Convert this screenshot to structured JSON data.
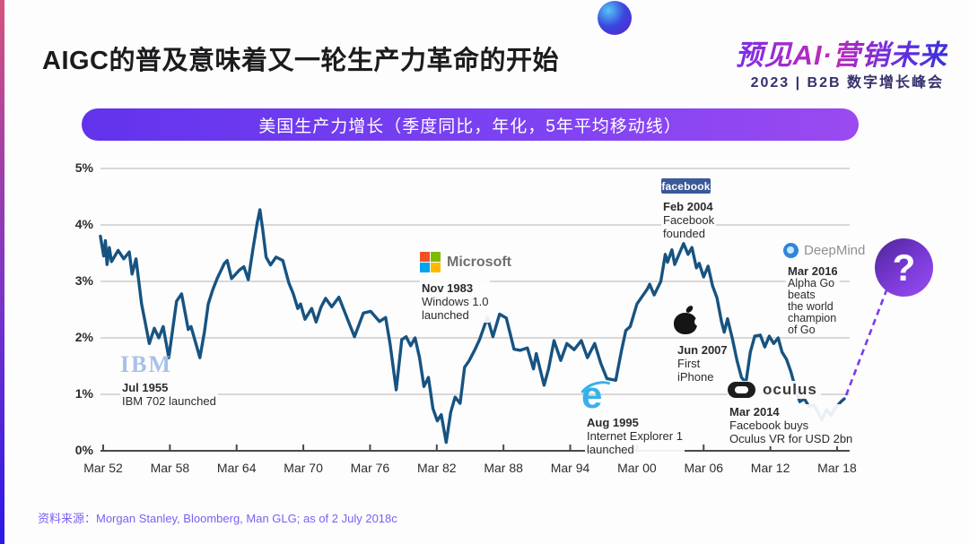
{
  "slide": {
    "title": "AIGC的普及意味着又一轮生产力革命的开始",
    "source_note": "资料来源：Morgan Stanley, Bloomberg, Man GLG; as of 2 July 2018c"
  },
  "brand": {
    "line1": "预见AI·营销未来",
    "line2": "2023 | B2B 数字增长峰会"
  },
  "chart_data": {
    "type": "line",
    "title": "美国生产力增长（季度同比，年化，5年平均移动线）",
    "ylabel": "",
    "xlabel": "",
    "ylim": [
      0,
      5
    ],
    "x_range_years": [
      1952.25,
      2018.25
    ],
    "grid": true,
    "line_color": "#175380",
    "y_tick_labels": [
      "0%",
      "1%",
      "2%",
      "3%",
      "4%",
      "5%"
    ],
    "x_tick_labels": [
      "Mar 52",
      "Mar 58",
      "Mar 64",
      "Mar 70",
      "Mar 76",
      "Mar 82",
      "Mar 88",
      "Mar 94",
      "Mar 00",
      "Mar 06",
      "Mar 12",
      "Mar 18"
    ],
    "series": [
      {
        "name": "美国生产力增长（5年平均移动线）",
        "points": [
          [
            1952.0,
            3.8
          ],
          [
            1952.3,
            3.45
          ],
          [
            1952.45,
            3.72
          ],
          [
            1952.6,
            3.3
          ],
          [
            1952.8,
            3.6
          ],
          [
            1953.0,
            3.35
          ],
          [
            1953.6,
            3.55
          ],
          [
            1954.1,
            3.4
          ],
          [
            1954.6,
            3.52
          ],
          [
            1954.85,
            3.13
          ],
          [
            1955.2,
            3.4
          ],
          [
            1955.7,
            2.6
          ],
          [
            1956.0,
            2.3
          ],
          [
            1956.4,
            1.9
          ],
          [
            1956.85,
            2.17
          ],
          [
            1957.25,
            2.0
          ],
          [
            1957.65,
            2.2
          ],
          [
            1958.15,
            1.65
          ],
          [
            1958.85,
            2.65
          ],
          [
            1959.3,
            2.78
          ],
          [
            1959.9,
            2.15
          ],
          [
            1960.15,
            2.2
          ],
          [
            1960.95,
            1.65
          ],
          [
            1961.35,
            2.1
          ],
          [
            1961.7,
            2.6
          ],
          [
            1962.1,
            2.85
          ],
          [
            1962.5,
            3.05
          ],
          [
            1963.15,
            3.32
          ],
          [
            1963.4,
            3.37
          ],
          [
            1963.8,
            3.05
          ],
          [
            1964.5,
            3.2
          ],
          [
            1964.9,
            3.26
          ],
          [
            1965.3,
            3.03
          ],
          [
            1965.7,
            3.55
          ],
          [
            1966.1,
            4.03
          ],
          [
            1966.35,
            4.27
          ],
          [
            1966.6,
            3.92
          ],
          [
            1966.9,
            3.43
          ],
          [
            1967.3,
            3.29
          ],
          [
            1967.8,
            3.43
          ],
          [
            1968.4,
            3.37
          ],
          [
            1968.95,
            2.97
          ],
          [
            1969.35,
            2.78
          ],
          [
            1969.75,
            2.52
          ],
          [
            1970.0,
            2.6
          ],
          [
            1970.4,
            2.33
          ],
          [
            1971.0,
            2.52
          ],
          [
            1971.4,
            2.28
          ],
          [
            1971.85,
            2.55
          ],
          [
            1972.25,
            2.7
          ],
          [
            1972.8,
            2.55
          ],
          [
            1973.45,
            2.72
          ],
          [
            1974.85,
            2.02
          ],
          [
            1975.65,
            2.44
          ],
          [
            1976.3,
            2.47
          ],
          [
            1977.1,
            2.29
          ],
          [
            1977.65,
            2.36
          ],
          [
            1978.05,
            1.9
          ],
          [
            1978.6,
            1.08
          ],
          [
            1979.1,
            1.97
          ],
          [
            1979.5,
            2.02
          ],
          [
            1979.9,
            1.86
          ],
          [
            1980.3,
            2.0
          ],
          [
            1980.7,
            1.65
          ],
          [
            1981.1,
            1.14
          ],
          [
            1981.5,
            1.3
          ],
          [
            1981.9,
            0.75
          ],
          [
            1982.3,
            0.53
          ],
          [
            1982.65,
            0.64
          ],
          [
            1983.1,
            0.15
          ],
          [
            1983.5,
            0.68
          ],
          [
            1983.9,
            0.95
          ],
          [
            1984.35,
            0.84
          ],
          [
            1984.75,
            1.48
          ],
          [
            1985.15,
            1.59
          ],
          [
            1985.7,
            1.8
          ],
          [
            1986.1,
            1.97
          ],
          [
            1986.8,
            2.36
          ],
          [
            1987.3,
            2.02
          ],
          [
            1987.9,
            2.42
          ],
          [
            1988.5,
            2.35
          ],
          [
            1989.2,
            1.8
          ],
          [
            1989.75,
            1.78
          ],
          [
            1990.4,
            1.82
          ],
          [
            1990.95,
            1.45
          ],
          [
            1991.2,
            1.72
          ],
          [
            1991.9,
            1.16
          ],
          [
            1992.3,
            1.45
          ],
          [
            1992.8,
            1.95
          ],
          [
            1993.4,
            1.6
          ],
          [
            1993.95,
            1.9
          ],
          [
            1994.6,
            1.79
          ],
          [
            1995.25,
            1.95
          ],
          [
            1995.8,
            1.65
          ],
          [
            1996.45,
            1.9
          ],
          [
            1997.0,
            1.55
          ],
          [
            1997.55,
            1.28
          ],
          [
            1998.35,
            1.25
          ],
          [
            1998.85,
            1.76
          ],
          [
            1999.25,
            2.13
          ],
          [
            1999.65,
            2.2
          ],
          [
            2000.25,
            2.6
          ],
          [
            2001.2,
            2.87
          ],
          [
            2001.4,
            2.95
          ],
          [
            2001.8,
            2.76
          ],
          [
            2002.4,
            3.0
          ],
          [
            2002.8,
            3.48
          ],
          [
            2003.0,
            3.34
          ],
          [
            2003.4,
            3.56
          ],
          [
            2003.65,
            3.3
          ],
          [
            2004.45,
            3.67
          ],
          [
            2004.85,
            3.48
          ],
          [
            2005.2,
            3.6
          ],
          [
            2005.6,
            3.24
          ],
          [
            2005.85,
            3.32
          ],
          [
            2006.25,
            3.08
          ],
          [
            2006.65,
            3.27
          ],
          [
            2007.05,
            2.92
          ],
          [
            2007.45,
            2.71
          ],
          [
            2007.85,
            2.29
          ],
          [
            2008.1,
            2.1
          ],
          [
            2008.4,
            2.34
          ],
          [
            2008.85,
            1.97
          ],
          [
            2009.25,
            1.6
          ],
          [
            2009.65,
            1.3
          ],
          [
            2010.05,
            1.2
          ],
          [
            2010.45,
            1.75
          ],
          [
            2010.85,
            2.03
          ],
          [
            2011.35,
            2.05
          ],
          [
            2011.75,
            1.84
          ],
          [
            2012.15,
            2.03
          ],
          [
            2012.55,
            1.9
          ],
          [
            2012.95,
            2.0
          ],
          [
            2013.3,
            1.75
          ],
          [
            2013.7,
            1.62
          ],
          [
            2014.1,
            1.4
          ],
          [
            2014.5,
            1.11
          ],
          [
            2014.9,
            0.87
          ],
          [
            2015.3,
            0.92
          ],
          [
            2015.7,
            0.79
          ],
          [
            2016.2,
            0.8
          ],
          [
            2016.9,
            0.55
          ],
          [
            2017.3,
            0.73
          ],
          [
            2017.7,
            0.63
          ],
          [
            2018.1,
            0.76
          ],
          [
            2018.6,
            0.87
          ],
          [
            2018.9,
            0.92
          ]
        ]
      }
    ],
    "annotations": [
      {
        "id": "ibm",
        "logo": "IBM",
        "date": "Jul 1955",
        "lines": [
          "IBM 702 launched"
        ]
      },
      {
        "id": "microsoft",
        "logo": "Microsoft",
        "date": "Nov 1983",
        "lines": [
          "Windows 1.0",
          "launched"
        ]
      },
      {
        "id": "ie",
        "logo": "e",
        "date": "Aug 1995",
        "lines": [
          "Internet Explorer 1",
          "launched"
        ]
      },
      {
        "id": "facebook",
        "logo": "facebook",
        "date": "Feb 2004",
        "lines": [
          "Facebook",
          "founded"
        ]
      },
      {
        "id": "apple",
        "logo": "Apple",
        "date": "Jun 2007",
        "lines": [
          "First",
          "iPhone"
        ]
      },
      {
        "id": "oculus",
        "logo": "oculus",
        "date": "Mar 2014",
        "lines": [
          "Facebook buys",
          "Oculus VR for USD 2bn"
        ]
      },
      {
        "id": "deepmind",
        "logo": "DeepMind",
        "date": "Mar 2016",
        "lines": [
          "Alpha Go",
          "beats",
          "the world",
          "champion",
          "of Go"
        ]
      },
      {
        "id": "future-question",
        "symbol": "?"
      }
    ]
  },
  "colors": {
    "banner_gradient_start": "#6233ec",
    "banner_gradient_end": "#9a4af0",
    "line": "#175380",
    "dashed_pointer": "#7b3af0",
    "question_bubble_start": "#4f2596",
    "question_bubble_end": "#9a4df2",
    "footer_text": "#7d5ff0"
  }
}
